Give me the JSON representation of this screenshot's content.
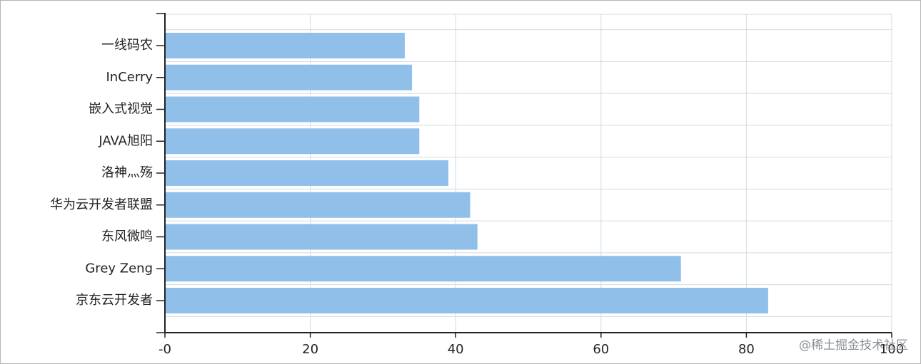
{
  "chart_data": {
    "type": "barh",
    "categories": [
      "一线码农",
      "InCerry",
      "嵌入式视觉",
      "JAVA旭阳",
      "洛神灬殇",
      "华为云开发者联盟",
      "东风微鸣",
      "Grey Zeng",
      "京东云开发者"
    ],
    "values": [
      33,
      34,
      35,
      35,
      39,
      42,
      43,
      71,
      83
    ],
    "color": "#90c0ea",
    "xlim": [
      0,
      100
    ],
    "xticks": [
      {
        "value": 0,
        "label": "-0"
      },
      20,
      40,
      60,
      80,
      100
    ],
    "grid": true,
    "watermark": "@稀土掘金技术社区"
  }
}
